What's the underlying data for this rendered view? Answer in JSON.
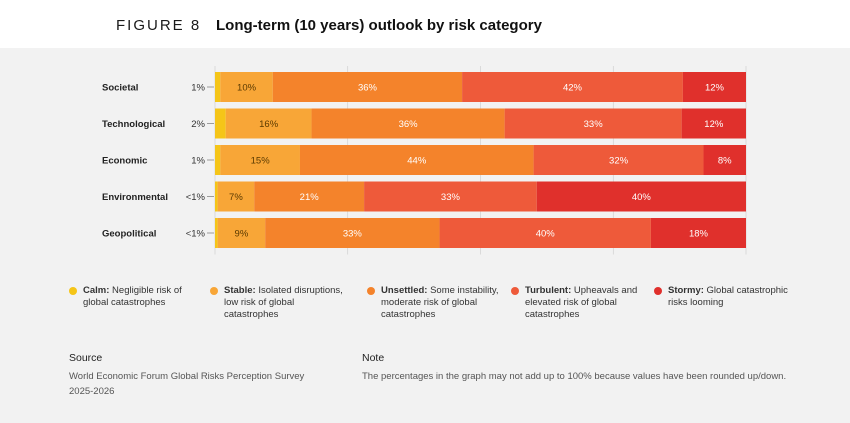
{
  "figure": {
    "label": "FIGURE 8",
    "title": "Long-term (10 years) outlook by risk category"
  },
  "colors": {
    "calm": "#f5c518",
    "stable": "#f8a637",
    "unsettled": "#f4832b",
    "turbulent": "#ee5a3a",
    "stormy": "#e0302c",
    "grid": "#c9c9c9",
    "background": "#f2f2f2"
  },
  "chart_data": {
    "type": "bar",
    "orientation": "horizontal",
    "stacked": true,
    "categories": [
      "Societal",
      "Technological",
      "Economic",
      "Environmental",
      "Geopolitical"
    ],
    "side_labels": [
      "1%",
      "2%",
      "1%",
      "<1%",
      "<1%"
    ],
    "series": [
      {
        "key": "calm",
        "values": [
          1,
          2,
          1,
          0.5,
          0.5
        ],
        "labels": [
          "",
          "",
          "",
          "",
          ""
        ]
      },
      {
        "key": "stable",
        "values": [
          10,
          16,
          15,
          7,
          9
        ],
        "labels": [
          "10%",
          "16%",
          "15%",
          "7%",
          "9%"
        ]
      },
      {
        "key": "unsettled",
        "values": [
          36,
          36,
          44,
          21,
          33
        ],
        "labels": [
          "36%",
          "36%",
          "44%",
          "21%",
          "33%"
        ]
      },
      {
        "key": "turbulent",
        "values": [
          42,
          33,
          32,
          33,
          40
        ],
        "labels": [
          "42%",
          "33%",
          "32%",
          "33%",
          "40%"
        ]
      },
      {
        "key": "stormy",
        "values": [
          12,
          12,
          8,
          40,
          18
        ],
        "labels": [
          "12%",
          "12%",
          "8%",
          "40%",
          "18%"
        ]
      }
    ]
  },
  "legend": [
    {
      "key": "calm",
      "bold": "Calm:",
      "text": " Negligible risk of global catastrophes"
    },
    {
      "key": "stable",
      "bold": "Stable:",
      "text": " Isolated disruptions, low risk of global catastrophes"
    },
    {
      "key": "unsettled",
      "bold": "Unsettled:",
      "text": " Some instability, moderate risk of global catastrophes"
    },
    {
      "key": "turbulent",
      "bold": "Turbulent:",
      "text": " Upheavals and elevated risk of global catastrophes"
    },
    {
      "key": "stormy",
      "bold": "Stormy:",
      "text": " Global catastrophic risks looming"
    }
  ],
  "source": {
    "title": "Source",
    "body": "World Economic Forum Global Risks Perception Survey 2025-2026"
  },
  "note": {
    "title": "Note",
    "body": "The percentages in the graph may not add up to 100% because values have been rounded up/down."
  }
}
